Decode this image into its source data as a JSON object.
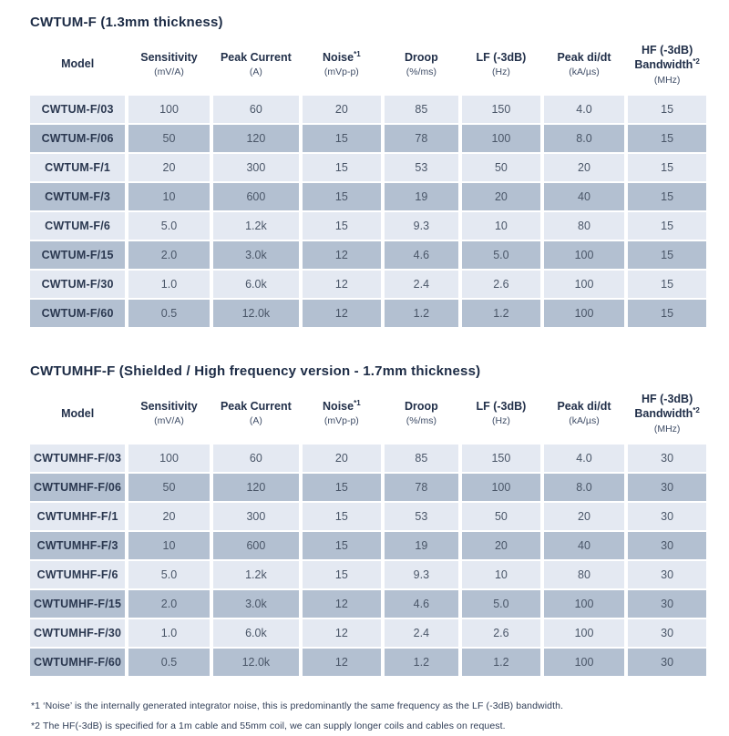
{
  "colors": {
    "title_text": "#1c2b45",
    "header_text": "#22304a",
    "unit_text": "#3e4c66",
    "model_text": "#2b3850",
    "value_text": "#4a5668",
    "row_light_bg": "#e4e9f2",
    "row_dark_bg": "#b3c0d1",
    "footnote_text": "#2f3d56",
    "page_bg": "#ffffff"
  },
  "tables": [
    {
      "title": "CWTUM-F (1.3mm thickness)",
      "columns": [
        {
          "label": "Model",
          "sup": "",
          "unit": ""
        },
        {
          "label": "Sensitivity",
          "sup": "",
          "unit": "(mV/A)"
        },
        {
          "label": "Peak Current",
          "sup": "",
          "unit": "(A)"
        },
        {
          "label": "Noise",
          "sup": "*1",
          "unit": "(mVp-p)"
        },
        {
          "label": "Droop",
          "sup": "",
          "unit": "(%/ms)"
        },
        {
          "label": "LF (-3dB)",
          "sup": "",
          "unit": "(Hz)"
        },
        {
          "label": "Peak di/dt",
          "sup": "",
          "unit": "(kA/µs)"
        },
        {
          "label": "HF (-3dB) Bandwidth",
          "sup": "*2",
          "unit": "(MHz)"
        }
      ],
      "rows": [
        [
          "CWTUM-F/03",
          "100",
          "60",
          "20",
          "85",
          "150",
          "4.0",
          "15"
        ],
        [
          "CWTUM-F/06",
          "50",
          "120",
          "15",
          "78",
          "100",
          "8.0",
          "15"
        ],
        [
          "CWTUM-F/1",
          "20",
          "300",
          "15",
          "53",
          "50",
          "20",
          "15"
        ],
        [
          "CWTUM-F/3",
          "10",
          "600",
          "15",
          "19",
          "20",
          "40",
          "15"
        ],
        [
          "CWTUM-F/6",
          "5.0",
          "1.2k",
          "15",
          "9.3",
          "10",
          "80",
          "15"
        ],
        [
          "CWTUM-F/15",
          "2.0",
          "3.0k",
          "12",
          "4.6",
          "5.0",
          "100",
          "15"
        ],
        [
          "CWTUM-F/30",
          "1.0",
          "6.0k",
          "12",
          "2.4",
          "2.6",
          "100",
          "15"
        ],
        [
          "CWTUM-F/60",
          "0.5",
          "12.0k",
          "12",
          "1.2",
          "1.2",
          "100",
          "15"
        ]
      ]
    },
    {
      "title": "CWTUMHF-F (Shielded / High frequency version - 1.7mm thickness)",
      "columns": [
        {
          "label": "Model",
          "sup": "",
          "unit": ""
        },
        {
          "label": "Sensitivity",
          "sup": "",
          "unit": "(mV/A)"
        },
        {
          "label": "Peak Current",
          "sup": "",
          "unit": "(A)"
        },
        {
          "label": "Noise",
          "sup": "*1",
          "unit": "(mVp-p)"
        },
        {
          "label": "Droop",
          "sup": "",
          "unit": "(%/ms)"
        },
        {
          "label": "LF (-3dB)",
          "sup": "",
          "unit": "(Hz)"
        },
        {
          "label": "Peak di/dt",
          "sup": "",
          "unit": "(kA/µs)"
        },
        {
          "label": "HF (-3dB) Bandwidth",
          "sup": "*2",
          "unit": "(MHz)"
        }
      ],
      "rows": [
        [
          "CWTUMHF-F/03",
          "100",
          "60",
          "20",
          "85",
          "150",
          "4.0",
          "30"
        ],
        [
          "CWTUMHF-F/06",
          "50",
          "120",
          "15",
          "78",
          "100",
          "8.0",
          "30"
        ],
        [
          "CWTUMHF-F/1",
          "20",
          "300",
          "15",
          "53",
          "50",
          "20",
          "30"
        ],
        [
          "CWTUMHF-F/3",
          "10",
          "600",
          "15",
          "19",
          "20",
          "40",
          "30"
        ],
        [
          "CWTUMHF-F/6",
          "5.0",
          "1.2k",
          "15",
          "9.3",
          "10",
          "80",
          "30"
        ],
        [
          "CWTUMHF-F/15",
          "2.0",
          "3.0k",
          "12",
          "4.6",
          "5.0",
          "100",
          "30"
        ],
        [
          "CWTUMHF-F/30",
          "1.0",
          "6.0k",
          "12",
          "2.4",
          "2.6",
          "100",
          "30"
        ],
        [
          "CWTUMHF-F/60",
          "0.5",
          "12.0k",
          "12",
          "1.2",
          "1.2",
          "100",
          "30"
        ]
      ]
    }
  ],
  "footnotes": [
    "*1 ‘Noise’ is the internally generated integrator noise, this is predominantly the same frequency as the LF (-3dB) bandwidth.",
    "*2 The HF(-3dB) is specified for a 1m cable and 55mm coil, we can supply longer coils and cables on request."
  ]
}
